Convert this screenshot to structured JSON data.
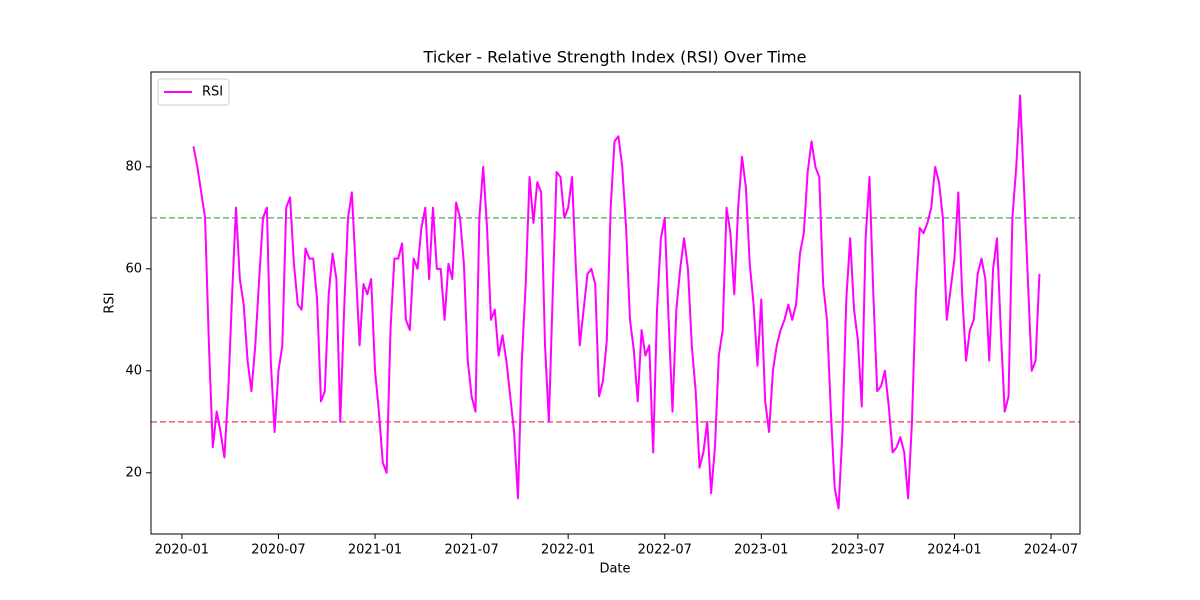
{
  "chart_data": {
    "type": "line",
    "title": "Ticker - Relative Strength Index (RSI) Over Time",
    "x_label": "Date",
    "y_label": "RSI",
    "x": [
      2020.06,
      2020.08,
      2020.1,
      2020.12,
      2020.14,
      2020.16,
      2020.18,
      2020.2,
      2020.22,
      2020.24,
      2020.26,
      2020.28,
      2020.3,
      2020.32,
      2020.34,
      2020.36,
      2020.38,
      2020.4,
      2020.42,
      2020.44,
      2020.46,
      2020.48,
      2020.5,
      2020.52,
      2020.54,
      2020.56,
      2020.58,
      2020.6,
      2020.62,
      2020.64,
      2020.66,
      2020.68,
      2020.7,
      2020.72,
      2020.74,
      2020.76,
      2020.78,
      2020.8,
      2020.82,
      2020.84,
      2020.86,
      2020.88,
      2020.9,
      2020.92,
      2020.94,
      2020.96,
      2020.98,
      2021,
      2021.02,
      2021.04,
      2021.06,
      2021.08,
      2021.1,
      2021.12,
      2021.14,
      2021.16,
      2021.18,
      2021.2,
      2021.22,
      2021.24,
      2021.26,
      2021.28,
      2021.3,
      2021.32,
      2021.34,
      2021.36,
      2021.38,
      2021.4,
      2021.42,
      2021.44,
      2021.46,
      2021.48,
      2021.5,
      2021.52,
      2021.54,
      2021.56,
      2021.58,
      2021.6,
      2021.62,
      2021.64,
      2021.66,
      2021.68,
      2021.7,
      2021.72,
      2021.74,
      2021.76,
      2021.78,
      2021.8,
      2021.82,
      2021.84,
      2021.86,
      2021.88,
      2021.9,
      2021.92,
      2021.94,
      2021.96,
      2021.98,
      2022,
      2022.02,
      2022.04,
      2022.06,
      2022.08,
      2022.1,
      2022.12,
      2022.14,
      2022.16,
      2022.18,
      2022.2,
      2022.22,
      2022.24,
      2022.26,
      2022.28,
      2022.3,
      2022.32,
      2022.34,
      2022.36,
      2022.38,
      2022.4,
      2022.42,
      2022.44,
      2022.46,
      2022.48,
      2022.5,
      2022.52,
      2022.54,
      2022.56,
      2022.58,
      2022.6,
      2022.62,
      2022.64,
      2022.66,
      2022.68,
      2022.7,
      2022.72,
      2022.74,
      2022.76,
      2022.78,
      2022.8,
      2022.82,
      2022.84,
      2022.86,
      2022.88,
      2022.9,
      2022.92,
      2022.94,
      2022.96,
      2022.98,
      2023,
      2023.02,
      2023.04,
      2023.06,
      2023.08,
      2023.1,
      2023.12,
      2023.14,
      2023.16,
      2023.18,
      2023.2,
      2023.22,
      2023.24,
      2023.26,
      2023.28,
      2023.3,
      2023.32,
      2023.34,
      2023.36,
      2023.38,
      2023.4,
      2023.42,
      2023.44,
      2023.46,
      2023.48,
      2023.5,
      2023.52,
      2023.54,
      2023.56,
      2023.58,
      2023.6,
      2023.62,
      2023.64,
      2023.66,
      2023.68,
      2023.7,
      2023.72,
      2023.74,
      2023.76,
      2023.78,
      2023.8,
      2023.82,
      2023.84,
      2023.86,
      2023.88,
      2023.9,
      2023.92,
      2023.94,
      2023.96,
      2023.98,
      2024,
      2024.02,
      2024.04,
      2024.06,
      2024.08,
      2024.1,
      2024.12,
      2024.14,
      2024.16,
      2024.18,
      2024.2,
      2024.22,
      2024.24,
      2024.26,
      2024.28,
      2024.3,
      2024.32,
      2024.34,
      2024.36,
      2024.38,
      2024.4,
      2024.42,
      2024.44
    ],
    "series": [
      {
        "name": "RSI",
        "color": "#ff00ff",
        "values": [
          84,
          80,
          75,
          70,
          45,
          25,
          32,
          28,
          23,
          36,
          55,
          72,
          58,
          53,
          42,
          36,
          45,
          58,
          70,
          72,
          42,
          28,
          40,
          45,
          72,
          74,
          61,
          53,
          52,
          64,
          62,
          62,
          54,
          34,
          36,
          55,
          63,
          58,
          30,
          52,
          70,
          75,
          60,
          45,
          57,
          55,
          58,
          40,
          32,
          22,
          20,
          48,
          62,
          62,
          65,
          50,
          48,
          62,
          60,
          68,
          72,
          58,
          72,
          60,
          60,
          50,
          61,
          58,
          73,
          70,
          61,
          42,
          35,
          32,
          70,
          80,
          68,
          50,
          52,
          43,
          47,
          42,
          35,
          28,
          15,
          42,
          57,
          78,
          69,
          77,
          75,
          45,
          30,
          55,
          79,
          78,
          70,
          72,
          78,
          60,
          45,
          52,
          59,
          60,
          57,
          35,
          38,
          46,
          72,
          85,
          86,
          80,
          68,
          50,
          44,
          34,
          48,
          43,
          45,
          24,
          52,
          66,
          70,
          50,
          32,
          52,
          60,
          66,
          60,
          45,
          36,
          21,
          24,
          30,
          16,
          25,
          43,
          48,
          72,
          67,
          55,
          72,
          82,
          76,
          61,
          53,
          41,
          54,
          34,
          28,
          40,
          45,
          48,
          50,
          53,
          50,
          53,
          63,
          67,
          79,
          85,
          80,
          78,
          57,
          50,
          32,
          17,
          13,
          28,
          54,
          66,
          52,
          46,
          33,
          66,
          78,
          55,
          36,
          37,
          40,
          33,
          24,
          25,
          27,
          24,
          15,
          30,
          55,
          68,
          67,
          69,
          72,
          80,
          77,
          70,
          50,
          56,
          62,
          75,
          55,
          42,
          48,
          50,
          59,
          62,
          58,
          42,
          60,
          66,
          48,
          32,
          35,
          70,
          80,
          94,
          76,
          58,
          40,
          42,
          59
        ]
      }
    ],
    "hlines": [
      {
        "value": 70,
        "color": "#2ca02c"
      },
      {
        "value": 30,
        "color": "#d62728"
      }
    ],
    "xlim": [
      2019.84,
      2024.65
    ],
    "xticks": [
      {
        "value": 2020.0,
        "label": "2020-01"
      },
      {
        "value": 2020.5,
        "label": "2020-07"
      },
      {
        "value": 2021.0,
        "label": "2021-01"
      },
      {
        "value": 2021.5,
        "label": "2021-07"
      },
      {
        "value": 2022.0,
        "label": "2022-01"
      },
      {
        "value": 2022.5,
        "label": "2022-07"
      },
      {
        "value": 2023.0,
        "label": "2023-01"
      },
      {
        "value": 2023.5,
        "label": "2023-07"
      },
      {
        "value": 2024.0,
        "label": "2024-01"
      },
      {
        "value": 2024.5,
        "label": "2024-07"
      }
    ],
    "ylim": [
      8,
      98.6
    ],
    "yticks": [
      20,
      40,
      60,
      80
    ],
    "legend": "upper-left"
  }
}
